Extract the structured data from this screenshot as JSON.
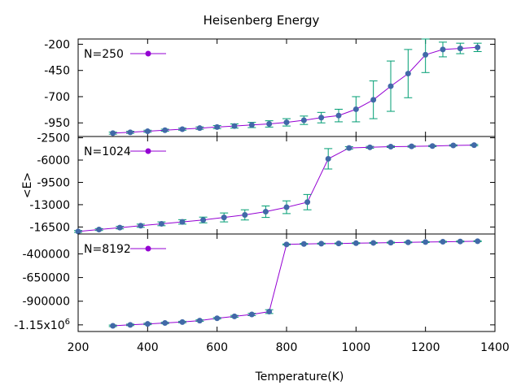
{
  "chart_data": {
    "type": "line",
    "title": "Heisenberg Energy",
    "xlabel": "Temperature(K)",
    "ylabel": "<E>",
    "xlim": [
      200,
      1400
    ],
    "x_ticks": [
      "200",
      "400",
      "600",
      "800",
      "1000",
      "1200",
      "1400"
    ],
    "line_color": "#9400d3",
    "marker_color": "#4169a8",
    "errorbar_color": "#009e73",
    "legend_position": "top-left",
    "grid": false,
    "panels": [
      {
        "series_name": "N=250",
        "ylim": [
          -1080,
          -150
        ],
        "y_ticks": [
          {
            "value": -200,
            "label": "-200"
          },
          {
            "value": -450,
            "label": "-450"
          },
          {
            "value": -700,
            "label": "-700"
          },
          {
            "value": -950,
            "label": "-950"
          }
        ],
        "points": [
          {
            "x": 300,
            "y": -1048,
            "err": 10
          },
          {
            "x": 350,
            "y": -1040,
            "err": 10
          },
          {
            "x": 400,
            "y": -1030,
            "err": 10
          },
          {
            "x": 450,
            "y": -1020,
            "err": 10
          },
          {
            "x": 500,
            "y": -1010,
            "err": 10
          },
          {
            "x": 550,
            "y": -1000,
            "err": 12
          },
          {
            "x": 600,
            "y": -990,
            "err": 15
          },
          {
            "x": 650,
            "y": -980,
            "err": 20
          },
          {
            "x": 700,
            "y": -970,
            "err": 25
          },
          {
            "x": 750,
            "y": -960,
            "err": 30
          },
          {
            "x": 800,
            "y": -945,
            "err": 35
          },
          {
            "x": 850,
            "y": -925,
            "err": 40
          },
          {
            "x": 900,
            "y": -900,
            "err": 50
          },
          {
            "x": 950,
            "y": -880,
            "err": 60
          },
          {
            "x": 1000,
            "y": -820,
            "err": 120
          },
          {
            "x": 1050,
            "y": -730,
            "err": 180
          },
          {
            "x": 1100,
            "y": -600,
            "err": 240
          },
          {
            "x": 1150,
            "y": -480,
            "err": 230
          },
          {
            "x": 1200,
            "y": -300,
            "err": 170
          },
          {
            "x": 1250,
            "y": -250,
            "err": 70
          },
          {
            "x": 1300,
            "y": -240,
            "err": 50
          },
          {
            "x": 1350,
            "y": -230,
            "err": 40
          }
        ]
      },
      {
        "series_name": "N=1024",
        "ylim": [
          -17600,
          -2300
        ],
        "y_ticks": [
          {
            "value": -2500,
            "label": "-2500"
          },
          {
            "value": -6000,
            "label": "-6000"
          },
          {
            "value": -9500,
            "label": "-9500"
          },
          {
            "value": -13000,
            "label": "-13000"
          },
          {
            "value": -16500,
            "label": "-16500"
          }
        ],
        "points": [
          {
            "x": 200,
            "y": -17200,
            "err": 150
          },
          {
            "x": 260,
            "y": -16900,
            "err": 150
          },
          {
            "x": 320,
            "y": -16600,
            "err": 200
          },
          {
            "x": 380,
            "y": -16300,
            "err": 250
          },
          {
            "x": 440,
            "y": -16000,
            "err": 300
          },
          {
            "x": 500,
            "y": -15700,
            "err": 350
          },
          {
            "x": 560,
            "y": -15400,
            "err": 450
          },
          {
            "x": 620,
            "y": -15000,
            "err": 700
          },
          {
            "x": 680,
            "y": -14600,
            "err": 800
          },
          {
            "x": 740,
            "y": -14100,
            "err": 900
          },
          {
            "x": 800,
            "y": -13400,
            "err": 1000
          },
          {
            "x": 860,
            "y": -12600,
            "err": 1200
          },
          {
            "x": 920,
            "y": -5800,
            "err": 1600
          },
          {
            "x": 980,
            "y": -4100,
            "err": 200
          },
          {
            "x": 1040,
            "y": -4000,
            "err": 150
          },
          {
            "x": 1100,
            "y": -3900,
            "err": 120
          },
          {
            "x": 1160,
            "y": -3850,
            "err": 120
          },
          {
            "x": 1220,
            "y": -3800,
            "err": 100
          },
          {
            "x": 1280,
            "y": -3700,
            "err": 100
          },
          {
            "x": 1340,
            "y": -3650,
            "err": 100
          }
        ]
      },
      {
        "series_name": "N=8192",
        "ylim": [
          -1220000,
          -190000
        ],
        "y_ticks": [
          {
            "value": -400000,
            "label": "-400000"
          },
          {
            "value": -650000,
            "label": "-650000"
          },
          {
            "value": -900000,
            "label": "-900000"
          },
          {
            "value": -1150000,
            "label": "-1.15x10",
            "sup": "6"
          }
        ],
        "points": [
          {
            "x": 300,
            "y": -1160000,
            "err": 8000
          },
          {
            "x": 350,
            "y": -1150000,
            "err": 8000
          },
          {
            "x": 400,
            "y": -1140000,
            "err": 8000
          },
          {
            "x": 450,
            "y": -1130000,
            "err": 8000
          },
          {
            "x": 500,
            "y": -1120000,
            "err": 8000
          },
          {
            "x": 550,
            "y": -1105000,
            "err": 8000
          },
          {
            "x": 600,
            "y": -1080000,
            "err": 8000
          },
          {
            "x": 650,
            "y": -1060000,
            "err": 10000
          },
          {
            "x": 700,
            "y": -1040000,
            "err": 12000
          },
          {
            "x": 750,
            "y": -1010000,
            "err": 20000
          },
          {
            "x": 800,
            "y": -300000,
            "err": 5000
          },
          {
            "x": 850,
            "y": -295000,
            "err": 5000
          },
          {
            "x": 900,
            "y": -292000,
            "err": 5000
          },
          {
            "x": 950,
            "y": -290000,
            "err": 5000
          },
          {
            "x": 1000,
            "y": -287000,
            "err": 5000
          },
          {
            "x": 1050,
            "y": -284000,
            "err": 5000
          },
          {
            "x": 1100,
            "y": -281000,
            "err": 5000
          },
          {
            "x": 1150,
            "y": -278000,
            "err": 5000
          },
          {
            "x": 1200,
            "y": -275000,
            "err": 5000
          },
          {
            "x": 1250,
            "y": -272000,
            "err": 5000
          },
          {
            "x": 1300,
            "y": -269000,
            "err": 5000
          },
          {
            "x": 1350,
            "y": -266000,
            "err": 5000
          }
        ]
      }
    ]
  }
}
